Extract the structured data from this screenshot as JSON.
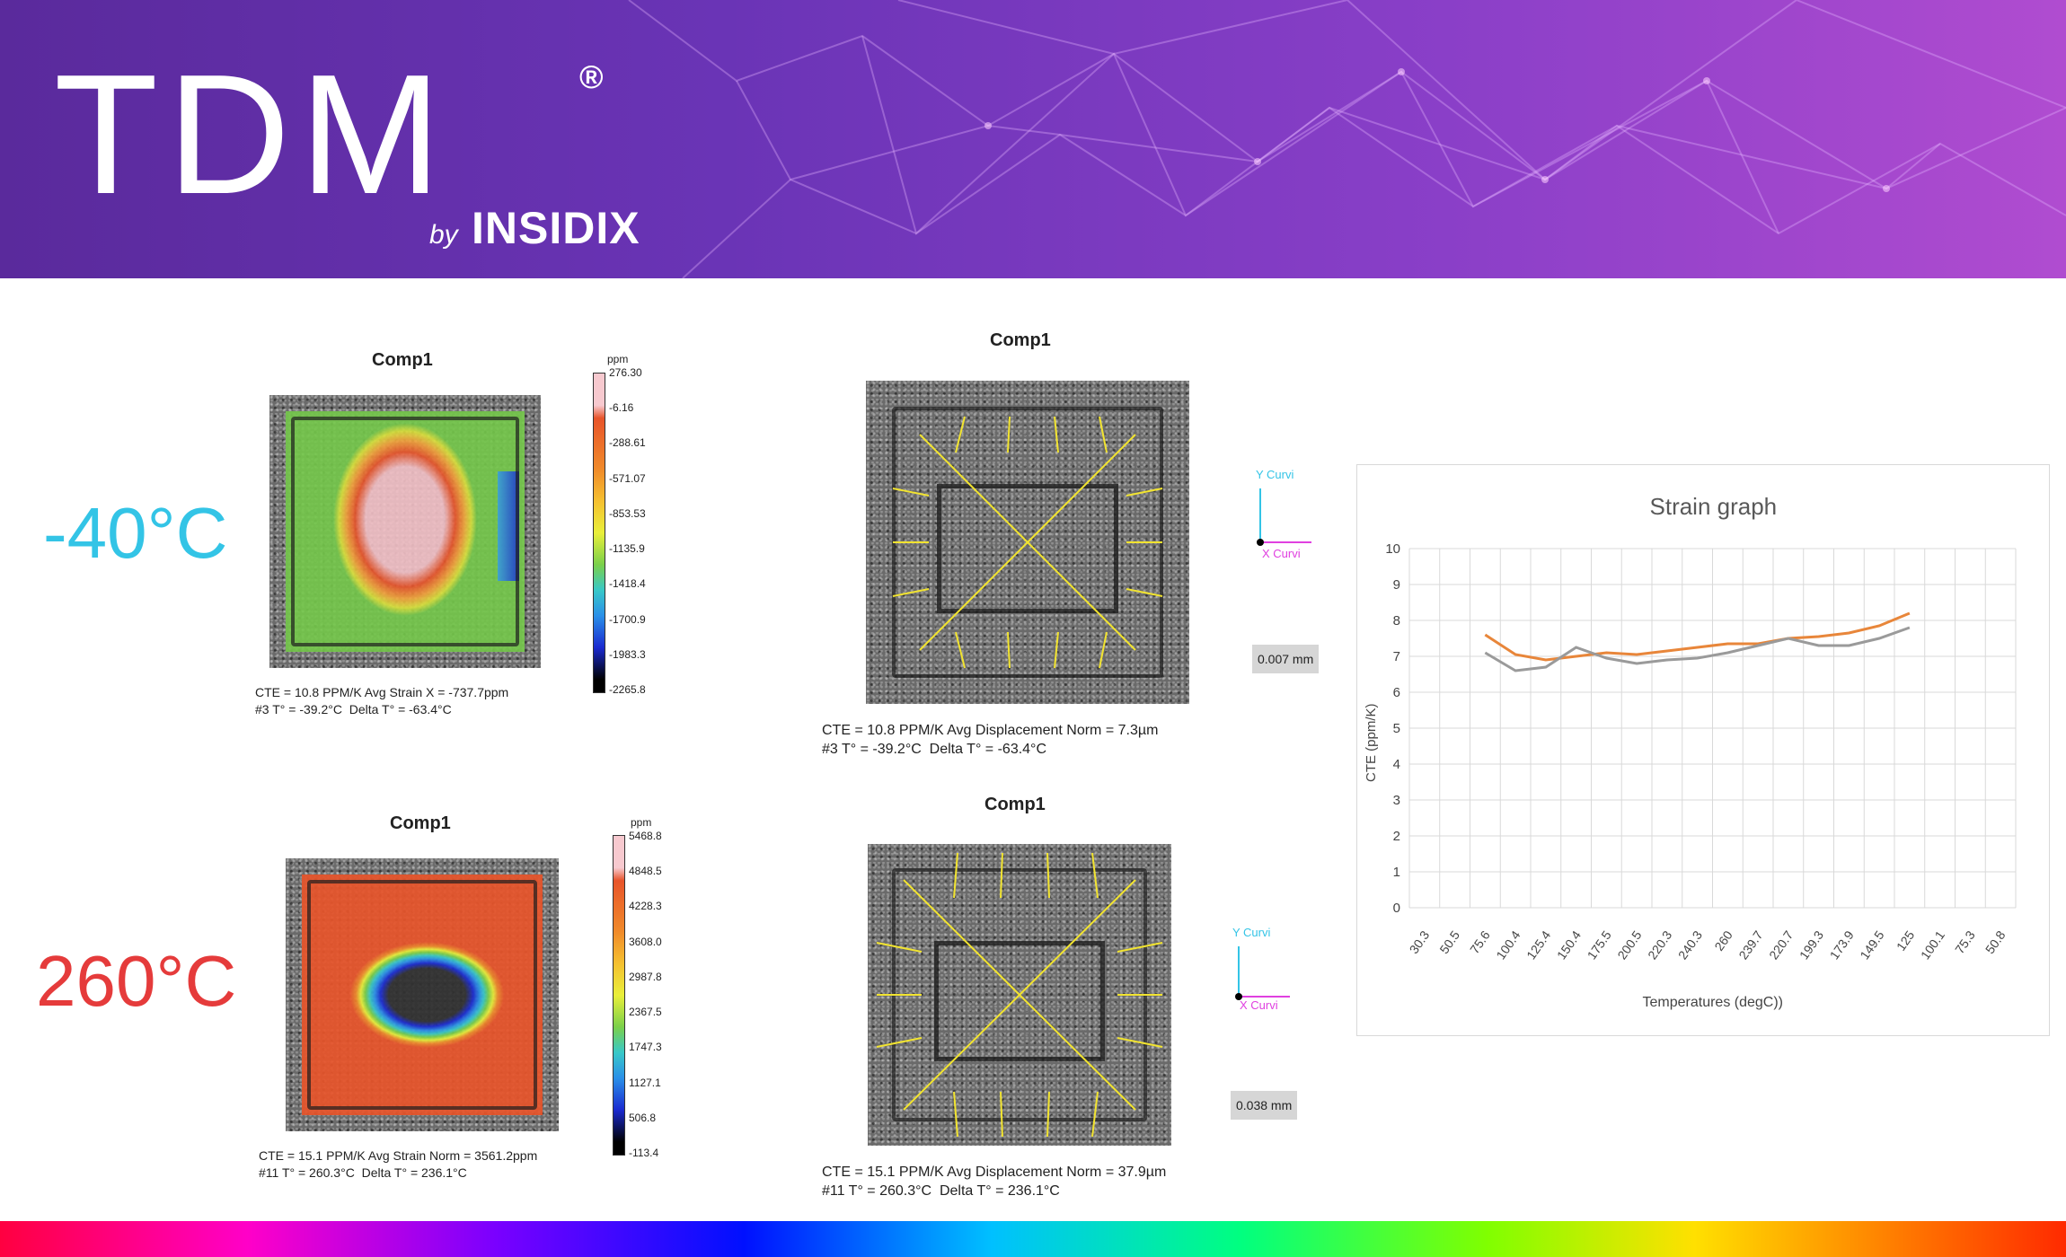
{
  "banner": {
    "logo_text": "TDM",
    "logo_registered": "®",
    "logo_by": "by",
    "logo_brand": "INSIDIX"
  },
  "temperatures": {
    "cold": "-40°C",
    "hot": "260°C"
  },
  "panels": {
    "strain_cold": {
      "title": "Comp1",
      "unit": "ppm",
      "scale": [
        "276.30",
        "-6.16",
        "-288.61",
        "-571.07",
        "-853.53",
        "-1135.9",
        "-1418.4",
        "-1700.9",
        "-1983.3",
        "-2265.8"
      ],
      "caption_line1": "CTE = 10.8 PPM/K Avg Strain X = -737.7ppm",
      "caption_line2": "#3 T° = -39.2°C  Delta T° = -63.4°C"
    },
    "displacement_cold": {
      "title": "Comp1",
      "y_axis": "Y Curvi",
      "x_axis": "X Curvi",
      "scale_box": "0.007 mm",
      "caption_line1": "CTE = 10.8 PPM/K Avg Displacement Norm = 7.3µm",
      "caption_line2": "#3 T° = -39.2°C  Delta T° = -63.4°C"
    },
    "strain_hot": {
      "title": "Comp1",
      "unit": "ppm",
      "scale": [
        "5468.8",
        "4848.5",
        "4228.3",
        "3608.0",
        "2987.8",
        "2367.5",
        "1747.3",
        "1127.1",
        "506.8",
        "-113.4"
      ],
      "caption_line1": "CTE = 15.1 PPM/K Avg Strain Norm = 3561.2ppm",
      "caption_line2": "#11 T° = 260.3°C  Delta T° = 236.1°C"
    },
    "displacement_hot": {
      "title": "Comp1",
      "y_axis": "Y Curvi",
      "x_axis": "X Curvi",
      "scale_box": "0.038 mm",
      "caption_line1": "CTE = 15.1 PPM/K Avg Displacement Norm = 37.9µm",
      "caption_line2": "#11 T° = 260.3°C  Delta T° = 236.1°C"
    }
  },
  "colors": {
    "cold_label": "#33c4e6",
    "hot_label": "#e53b3b",
    "series_orange": "#e8863a",
    "series_gray": "#9a9a9a"
  },
  "chart_data": {
    "type": "line",
    "title": "Strain graph",
    "xlabel": "Temperatures (degC))",
    "ylabel": "CTE  (ppm/K)",
    "ylim": [
      0,
      10
    ],
    "yticks": [
      0,
      1,
      2,
      3,
      4,
      5,
      6,
      7,
      8,
      9,
      10
    ],
    "categories": [
      "30.3",
      "50.5",
      "75.6",
      "100.4",
      "125.4",
      "150.4",
      "175.5",
      "200.5",
      "220.3",
      "240.3",
      "260",
      "239.7",
      "220.7",
      "199.3",
      "173.9",
      "149.5",
      "125",
      "100.1",
      "75.3",
      "50.8"
    ],
    "grid": true,
    "legend": "none",
    "series": [
      {
        "values": [
          null,
          null,
          7.6,
          7.05,
          6.9,
          7.0,
          7.1,
          7.05,
          7.15,
          7.25,
          7.35,
          7.35,
          7.5,
          7.55,
          7.65,
          7.85,
          8.2,
          null,
          null,
          null
        ]
      },
      {
        "values": [
          null,
          null,
          7.1,
          6.6,
          6.7,
          7.25,
          6.95,
          6.8,
          6.9,
          6.95,
          7.1,
          7.3,
          7.5,
          7.3,
          7.3,
          7.5,
          7.8,
          null,
          null,
          null
        ]
      }
    ]
  }
}
